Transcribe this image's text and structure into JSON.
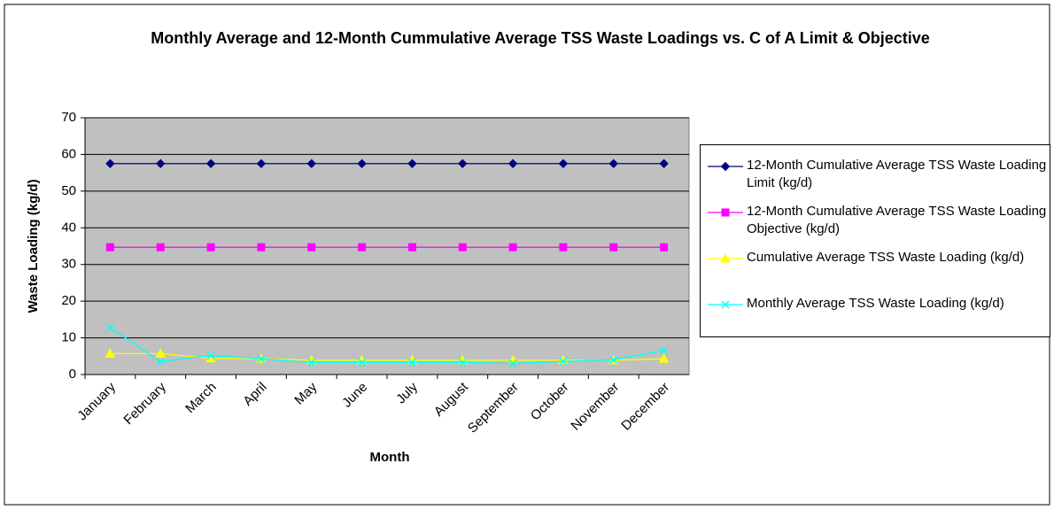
{
  "chart_data": {
    "type": "line",
    "title": "Monthly Average and 12-Month Cummulative Average TSS Waste Loadings vs. C of A Limit & Objective",
    "x_label": "Month",
    "y_label": "Waste Loading (kg/d)",
    "categories": [
      "January",
      "February",
      "March",
      "April",
      "May",
      "June",
      "July",
      "August",
      "September",
      "October",
      "November",
      "December"
    ],
    "ylim": [
      0,
      70
    ],
    "yticks": [
      0,
      10,
      20,
      30,
      40,
      50,
      60,
      70
    ],
    "grid": true,
    "legend": "right",
    "series": [
      {
        "name": "12-Month Cumulative Average TSS Waste Loading Limit (kg/d)",
        "color": "#000080",
        "marker": "diamond",
        "values": [
          57.5,
          57.5,
          57.5,
          57.5,
          57.5,
          57.5,
          57.5,
          57.5,
          57.5,
          57.5,
          57.5,
          57.5
        ]
      },
      {
        "name": "12-Month Cumulative Average TSS Waste Loading Objective (kg/d)",
        "color": "#FF00FF",
        "marker": "square",
        "values": [
          34.7,
          34.7,
          34.7,
          34.7,
          34.7,
          34.7,
          34.7,
          34.7,
          34.7,
          34.7,
          34.7,
          34.7
        ]
      },
      {
        "name": "Cumulative Average TSS Waste Loading (kg/d)",
        "color": "#FFFF00",
        "marker": "triangle",
        "values": [
          5.7,
          5.7,
          4.4,
          4.3,
          3.9,
          3.9,
          3.9,
          3.9,
          3.9,
          3.9,
          3.9,
          4.3
        ]
      },
      {
        "name": "Monthly Average TSS Waste Loading (kg/d)",
        "color": "#00FFFF",
        "marker": "x",
        "values": [
          12.8,
          3.5,
          5.2,
          4.3,
          3.3,
          3.3,
          3.3,
          3.3,
          3.0,
          3.6,
          4.0,
          6.6
        ]
      }
    ]
  }
}
